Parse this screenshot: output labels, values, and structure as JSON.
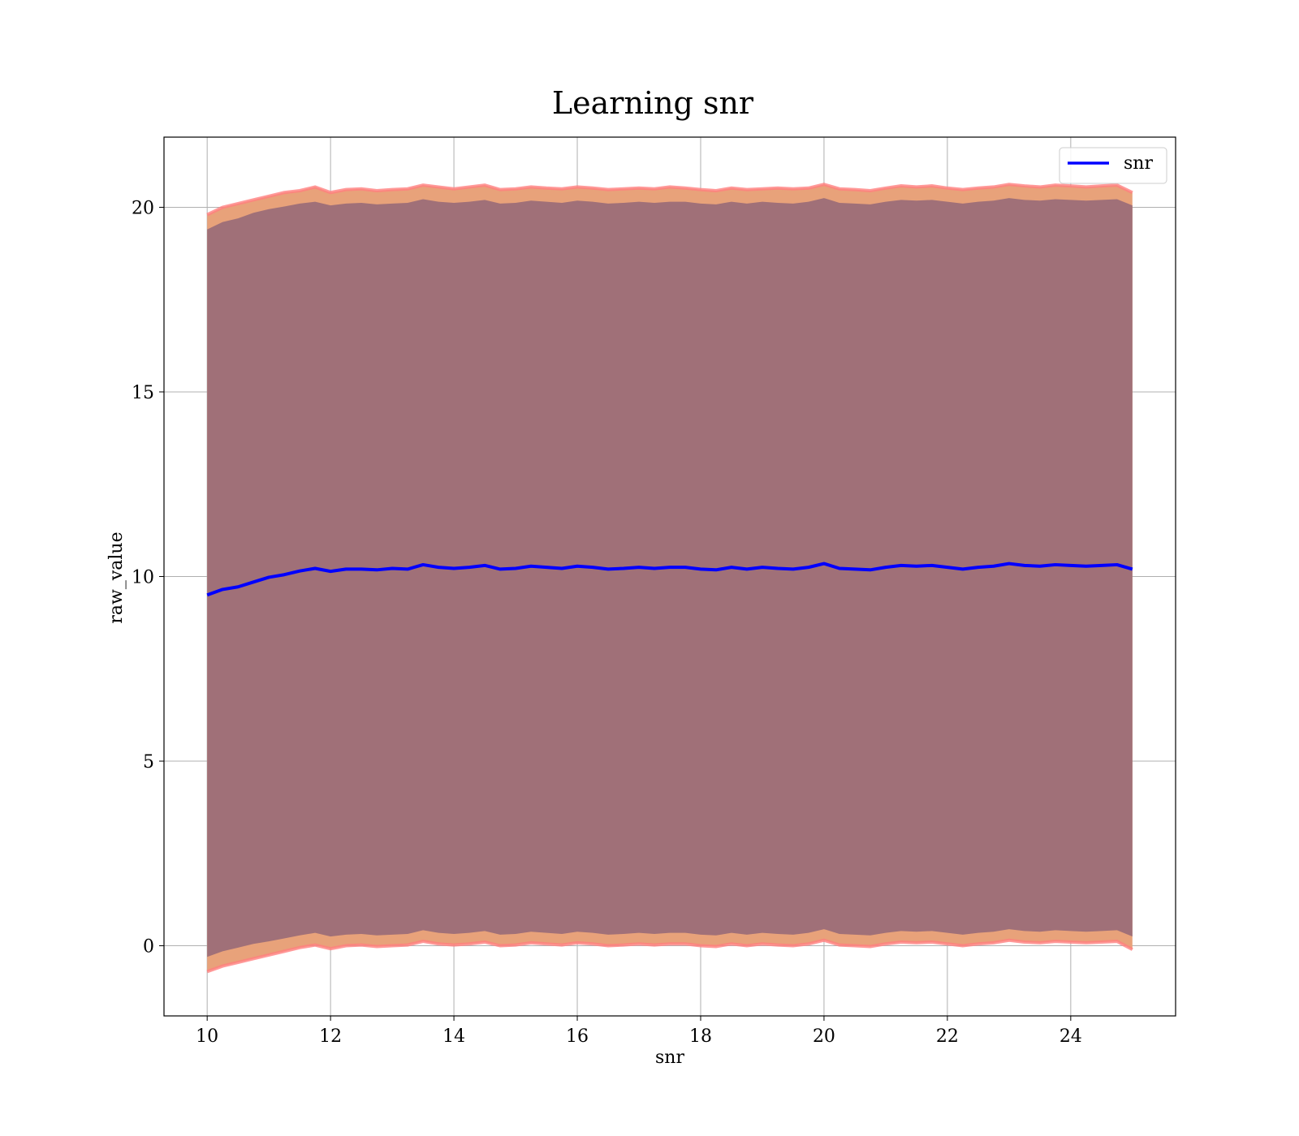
{
  "chart_data": {
    "type": "line",
    "title": "Learning snr",
    "xlabel": "snr",
    "ylabel": "raw_value",
    "xlim": [
      9.3,
      25.7
    ],
    "ylim": [
      -1.9,
      21.9
    ],
    "xticks": [
      10,
      12,
      14,
      16,
      18,
      20,
      22,
      24
    ],
    "yticks": [
      0,
      5,
      10,
      15,
      20
    ],
    "grid": true,
    "legend": {
      "position": "top-right",
      "entries": [
        "snr"
      ]
    },
    "colors": {
      "line": "#0000ff",
      "outer_band": "#e8a27a",
      "outer_band_edge": "#ff8080",
      "inner_band": "#a07078",
      "grid": "#b0b0b0"
    },
    "series": [
      {
        "name": "snr",
        "x": [
          10,
          10.25,
          10.5,
          10.75,
          11,
          11.25,
          11.5,
          11.75,
          12,
          12.25,
          12.5,
          12.75,
          13,
          13.25,
          13.5,
          13.75,
          14,
          14.25,
          14.5,
          14.75,
          15,
          15.25,
          15.5,
          15.75,
          16,
          16.25,
          16.5,
          16.75,
          17,
          17.25,
          17.5,
          17.75,
          18,
          18.25,
          18.5,
          18.75,
          19,
          19.25,
          19.5,
          19.75,
          20,
          20.25,
          20.5,
          20.75,
          21,
          21.25,
          21.5,
          21.75,
          22,
          22.25,
          22.5,
          22.75,
          23,
          23.25,
          23.5,
          23.75,
          24,
          24.25,
          24.5,
          24.75,
          25
        ],
        "values": [
          9.5,
          9.65,
          9.72,
          9.85,
          9.98,
          10.05,
          10.15,
          10.22,
          10.14,
          10.2,
          10.2,
          10.18,
          10.22,
          10.2,
          10.32,
          10.25,
          10.22,
          10.25,
          10.3,
          10.2,
          10.22,
          10.28,
          10.25,
          10.22,
          10.28,
          10.25,
          10.2,
          10.22,
          10.25,
          10.22,
          10.25,
          10.25,
          10.2,
          10.18,
          10.25,
          10.2,
          10.25,
          10.22,
          10.2,
          10.25,
          10.35,
          10.22,
          10.2,
          10.18,
          10.25,
          10.3,
          10.28,
          10.3,
          10.25,
          10.2,
          10.25,
          10.28,
          10.35,
          10.3,
          10.28,
          10.32,
          10.3,
          10.28,
          10.3,
          10.32,
          10.2
        ],
        "outer_upper": [
          19.8,
          20.0,
          20.1,
          20.2,
          20.3,
          20.4,
          20.45,
          20.55,
          20.4,
          20.48,
          20.5,
          20.45,
          20.48,
          20.5,
          20.6,
          20.55,
          20.5,
          20.55,
          20.6,
          20.48,
          20.5,
          20.55,
          20.52,
          20.5,
          20.55,
          20.52,
          20.48,
          20.5,
          20.52,
          20.5,
          20.55,
          20.52,
          20.48,
          20.45,
          20.52,
          20.48,
          20.5,
          20.52,
          20.5,
          20.52,
          20.62,
          20.5,
          20.48,
          20.45,
          20.52,
          20.58,
          20.55,
          20.58,
          20.52,
          20.48,
          20.52,
          20.55,
          20.62,
          20.58,
          20.55,
          20.6,
          20.58,
          20.55,
          20.58,
          20.6,
          20.4
        ],
        "outer_lower": [
          -0.7,
          -0.55,
          -0.45,
          -0.35,
          -0.25,
          -0.15,
          -0.05,
          0.02,
          -0.08,
          0.0,
          0.02,
          -0.02,
          0.0,
          0.02,
          0.12,
          0.05,
          0.02,
          0.05,
          0.1,
          0.0,
          0.02,
          0.08,
          0.05,
          0.02,
          0.08,
          0.05,
          0.0,
          0.02,
          0.05,
          0.02,
          0.05,
          0.05,
          0.0,
          -0.02,
          0.05,
          0.0,
          0.05,
          0.02,
          0.0,
          0.05,
          0.15,
          0.02,
          0.0,
          -0.02,
          0.05,
          0.1,
          0.08,
          0.1,
          0.05,
          0.0,
          0.05,
          0.08,
          0.15,
          0.1,
          0.08,
          0.12,
          0.1,
          0.08,
          0.1,
          0.12,
          -0.1
        ],
        "inner_upper": [
          19.4,
          19.6,
          19.7,
          19.85,
          19.95,
          20.02,
          20.1,
          20.15,
          20.05,
          20.1,
          20.12,
          20.08,
          20.1,
          20.12,
          20.22,
          20.15,
          20.12,
          20.15,
          20.2,
          20.1,
          20.12,
          20.18,
          20.15,
          20.12,
          20.18,
          20.15,
          20.1,
          20.12,
          20.15,
          20.12,
          20.15,
          20.15,
          20.1,
          20.08,
          20.15,
          20.1,
          20.15,
          20.12,
          20.1,
          20.15,
          20.25,
          20.12,
          20.1,
          20.08,
          20.15,
          20.2,
          20.18,
          20.2,
          20.15,
          20.1,
          20.15,
          20.18,
          20.25,
          20.2,
          20.18,
          20.22,
          20.2,
          20.18,
          20.2,
          20.22,
          20.05
        ],
        "inner_lower": [
          -0.3,
          -0.15,
          -0.05,
          0.05,
          0.12,
          0.2,
          0.28,
          0.35,
          0.25,
          0.3,
          0.32,
          0.28,
          0.3,
          0.32,
          0.42,
          0.35,
          0.32,
          0.35,
          0.4,
          0.3,
          0.32,
          0.38,
          0.35,
          0.32,
          0.38,
          0.35,
          0.3,
          0.32,
          0.35,
          0.32,
          0.35,
          0.35,
          0.3,
          0.28,
          0.35,
          0.3,
          0.35,
          0.32,
          0.3,
          0.35,
          0.45,
          0.32,
          0.3,
          0.28,
          0.35,
          0.4,
          0.38,
          0.4,
          0.35,
          0.3,
          0.35,
          0.38,
          0.45,
          0.4,
          0.38,
          0.42,
          0.4,
          0.38,
          0.4,
          0.42,
          0.25
        ]
      }
    ]
  }
}
